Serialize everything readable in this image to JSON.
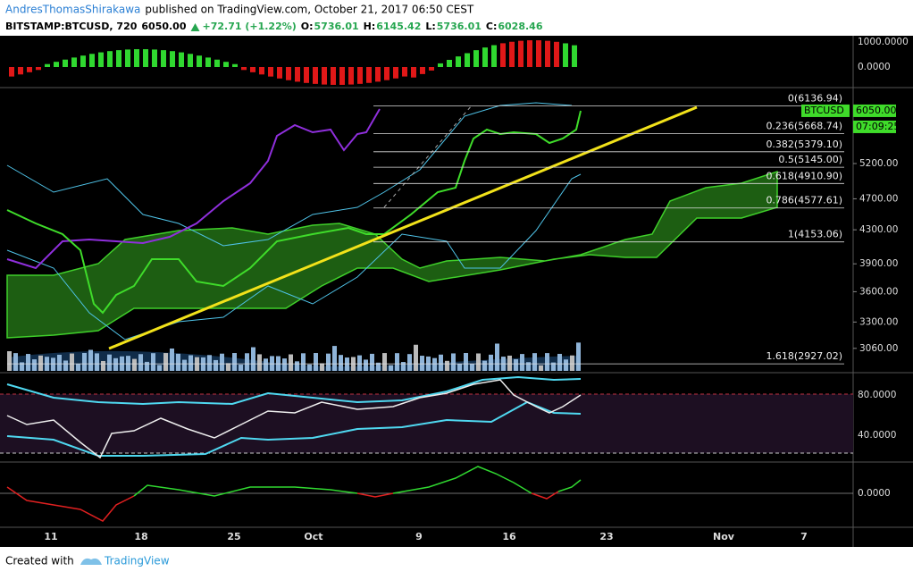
{
  "header": {
    "author": "AndresThomasShirakawa",
    "published": "published on TradingView.com, October 21, 2017 06:50 CEST",
    "symbol": "BITSTAMP:BTCUSD, 720",
    "last": "6050.00",
    "change": "+72.71 (+1.22%)",
    "ohlc": [
      "O:",
      "5736.01",
      "H:",
      "6145.42",
      "L:",
      "5736.01",
      "C:",
      "6028.46"
    ]
  },
  "price_axis": {
    "ticks": [
      {
        "value": 5200,
        "label": "5200.00"
      },
      {
        "value": 4700,
        "label": "4700.00"
      },
      {
        "value": 4300,
        "label": "4300.00"
      },
      {
        "value": 3900,
        "label": "3900.00"
      },
      {
        "value": 3600,
        "label": "3600.00"
      },
      {
        "value": 3300,
        "label": "3300.00"
      },
      {
        "value": 3060,
        "label": "3060.00"
      }
    ],
    "last_price": {
      "value": 6050,
      "label": "6050.00"
    },
    "symbol_tag": "BTCUSD",
    "countdown": "07:09:25"
  },
  "fib_levels": [
    {
      "label": "0(6136.94)",
      "price": 6136.94
    },
    {
      "label": "0.236(5668.74)",
      "price": 5668.74
    },
    {
      "label": "0.382(5379.10)",
      "price": 5379.1
    },
    {
      "label": "0.5(5145.00)",
      "price": 5145.0
    },
    {
      "label": "0.618(4910.90)",
      "price": 4910.9
    },
    {
      "label": "0.786(4577.61)",
      "price": 4577.61
    },
    {
      "label": "1(4153.06)",
      "price": 4153.06
    },
    {
      "label": "1.618(2927.02)",
      "price": 2927.02
    }
  ],
  "macd_axis": [
    "1000.0000",
    "0.0000"
  ],
  "rsi_axis": [
    "80.0000",
    "40.0000"
  ],
  "osc_axis": [
    "0.0000"
  ],
  "date_axis": [
    "11",
    "18",
    "25",
    "Oct",
    "9",
    "16",
    "23",
    "Nov",
    "7"
  ],
  "footer": {
    "created": "Created with",
    "brand": "TradingView"
  }
}
